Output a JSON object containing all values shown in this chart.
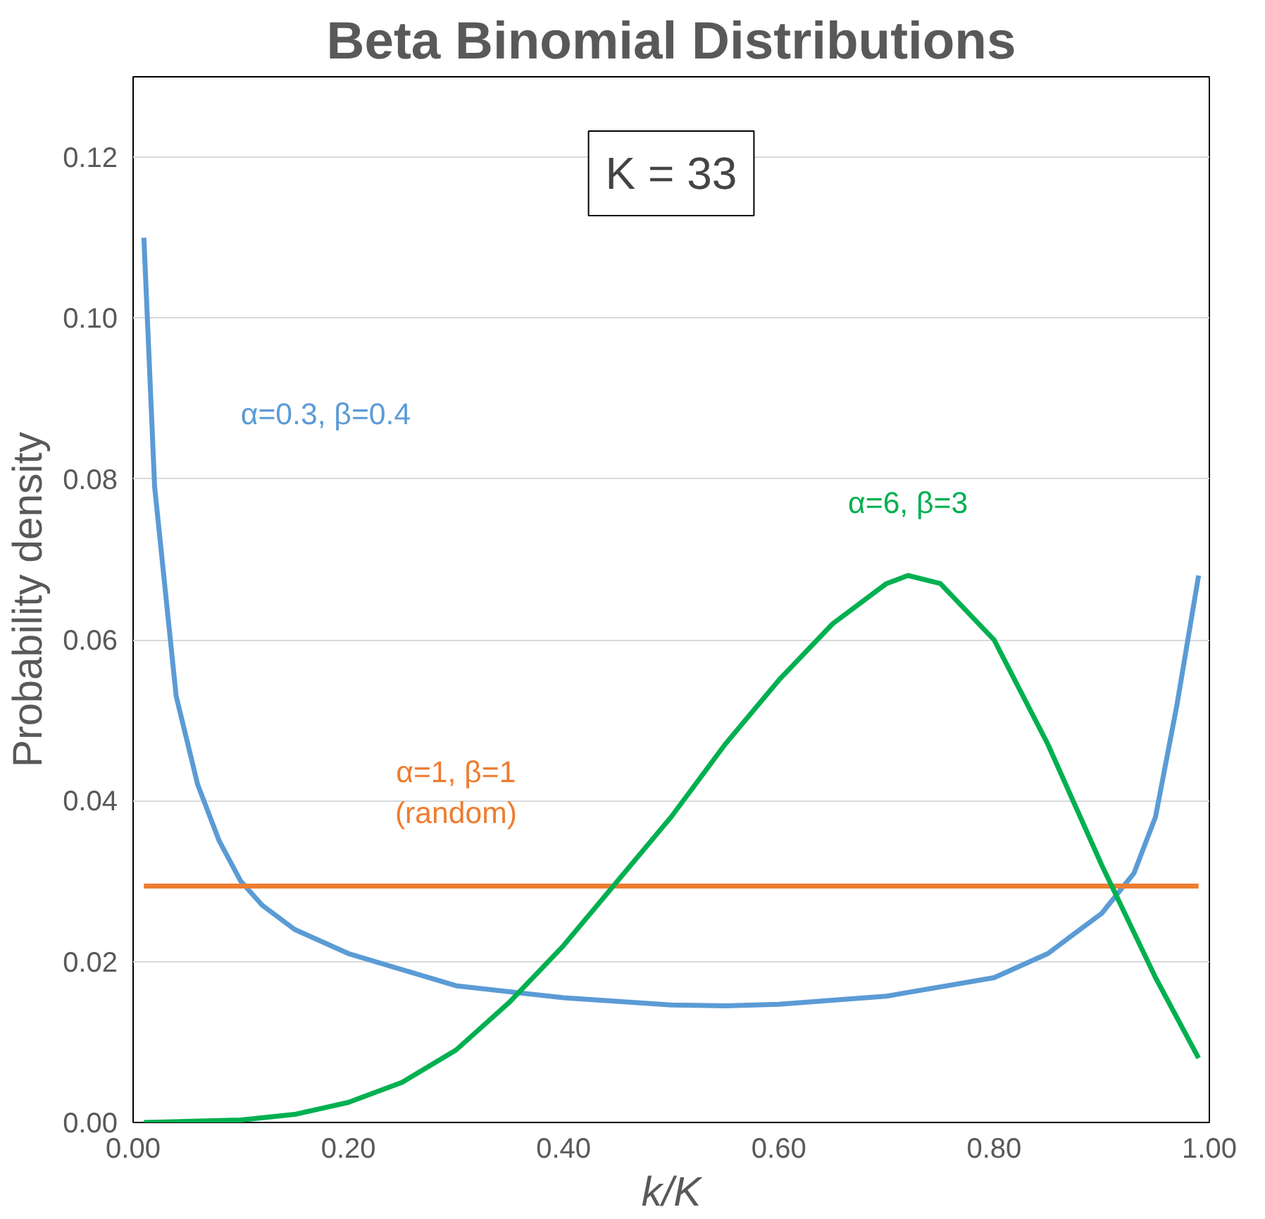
{
  "chart_data": {
    "type": "line",
    "title": "Beta Binomial Distributions",
    "xlabel": "k/K",
    "ylabel": "Probability density",
    "annotations": [
      "K = 33"
    ],
    "xlim": [
      0,
      1
    ],
    "ylim": [
      0,
      0.13
    ],
    "xticks": [
      {
        "value": 0,
        "label": "0.00"
      },
      {
        "value": 0.2,
        "label": "0.20"
      },
      {
        "value": 0.4,
        "label": "0.40"
      },
      {
        "value": 0.6,
        "label": "0.60"
      },
      {
        "value": 0.8,
        "label": "0.80"
      },
      {
        "value": 1,
        "label": "1.00"
      }
    ],
    "yticks": [
      {
        "value": 0,
        "label": "0.00"
      },
      {
        "value": 0.02,
        "label": "0.02"
      },
      {
        "value": 0.04,
        "label": "0.04"
      },
      {
        "value": 0.06,
        "label": "0.06"
      },
      {
        "value": 0.08,
        "label": "0.08"
      },
      {
        "value": 0.1,
        "label": "0.10"
      },
      {
        "value": 0.12,
        "label": "0.12"
      }
    ],
    "grid": "y",
    "legend": false,
    "marker": "none",
    "line_style": "solid",
    "series": [
      {
        "name": "α=0.3, β=0.4",
        "color": "#5b9bd5",
        "x": [
          0.01,
          0.02,
          0.04,
          0.06,
          0.08,
          0.1,
          0.12,
          0.15,
          0.2,
          0.3,
          0.4,
          0.5,
          0.55,
          0.6,
          0.7,
          0.8,
          0.85,
          0.9,
          0.93,
          0.95,
          0.97,
          0.99
        ],
        "values": [
          0.11,
          0.079,
          0.053,
          0.042,
          0.035,
          0.03,
          0.027,
          0.024,
          0.021,
          0.017,
          0.0155,
          0.0146,
          0.0145,
          0.0147,
          0.0157,
          0.018,
          0.021,
          0.026,
          0.031,
          0.038,
          0.052,
          0.068
        ]
      },
      {
        "name": "α=1, β=1\n(random)",
        "color": "#ed7d31",
        "x": [
          0.01,
          0.99
        ],
        "values": [
          0.0294,
          0.0294
        ]
      },
      {
        "name": "α=6, β=3",
        "color": "#00b050",
        "x": [
          0.01,
          0.1,
          0.15,
          0.2,
          0.25,
          0.3,
          0.35,
          0.4,
          0.45,
          0.5,
          0.55,
          0.6,
          0.65,
          0.7,
          0.72,
          0.75,
          0.8,
          0.85,
          0.9,
          0.95,
          0.99
        ],
        "values": [
          0,
          0.0003,
          0.001,
          0.0025,
          0.005,
          0.009,
          0.015,
          0.022,
          0.03,
          0.038,
          0.047,
          0.055,
          0.062,
          0.067,
          0.068,
          0.067,
          0.06,
          0.047,
          0.032,
          0.018,
          0.008
        ]
      }
    ]
  }
}
